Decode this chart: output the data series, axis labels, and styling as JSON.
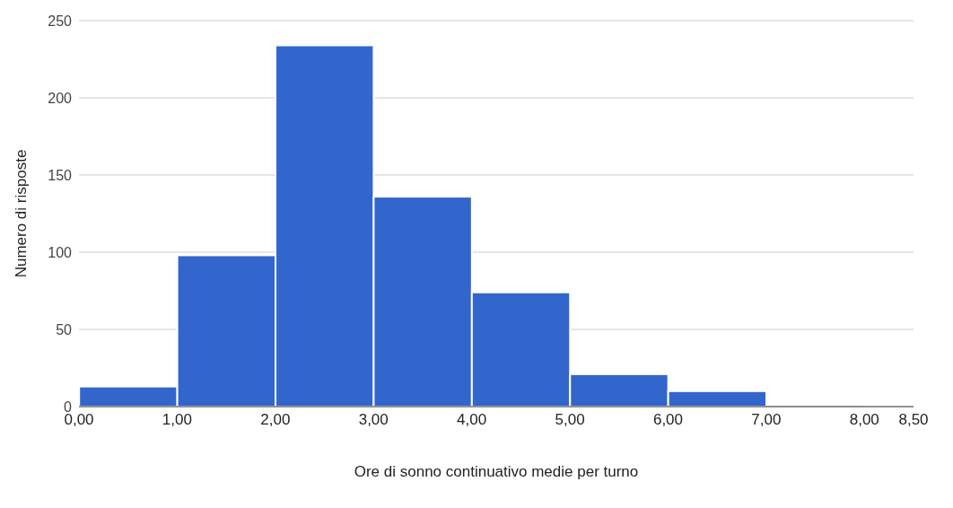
{
  "chart_data": {
    "type": "histogram",
    "xlabel": "Ore di sonno continuativo medie per turno",
    "ylabel": "Numero di risposte",
    "bins": [
      0,
      1,
      2,
      3,
      4,
      5,
      6,
      7,
      8,
      8.5
    ],
    "values": [
      13,
      98,
      234,
      136,
      74,
      21,
      10,
      0,
      1
    ],
    "color": "#3366cc",
    "xlim": [
      0,
      8.5
    ],
    "xticks": [
      {
        "value": 0,
        "label": "0,00"
      },
      {
        "value": 1,
        "label": "1,00"
      },
      {
        "value": 2,
        "label": "2,00"
      },
      {
        "value": 3,
        "label": "3,00"
      },
      {
        "value": 4,
        "label": "4,00"
      },
      {
        "value": 5,
        "label": "5,00"
      },
      {
        "value": 6,
        "label": "6,00"
      },
      {
        "value": 7,
        "label": "7,00"
      },
      {
        "value": 8,
        "label": "8,00"
      },
      {
        "value": 8.5,
        "label": "8,50"
      }
    ],
    "ylim": [
      0,
      250
    ],
    "yticks": [
      0,
      50,
      100,
      150,
      200,
      250
    ],
    "grid": "y",
    "legend": false
  }
}
